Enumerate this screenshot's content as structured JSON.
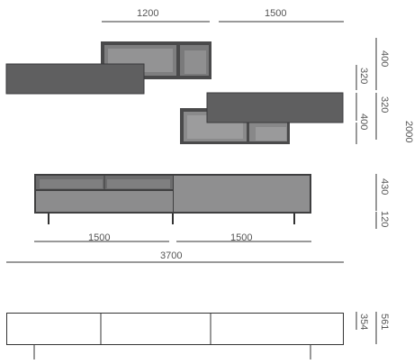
{
  "dimensions": {
    "top_widths": [
      "1200",
      "1500"
    ],
    "right_heights": [
      "400",
      "320",
      "320",
      "400",
      "2000"
    ],
    "sideboard_heights": [
      "430",
      "120"
    ],
    "sideboard_widths": [
      "1500",
      "1500"
    ],
    "overall_width": "3700",
    "low_unit_heights": [
      "561",
      "354"
    ]
  },
  "colors": {
    "line": "#333333",
    "panel_dark": "#5f5f60",
    "panel_mid": "#8b8b8c",
    "panel_light": "#a3a3a4",
    "interior": "#7c7c7d",
    "frame": "#3a3a3b"
  }
}
